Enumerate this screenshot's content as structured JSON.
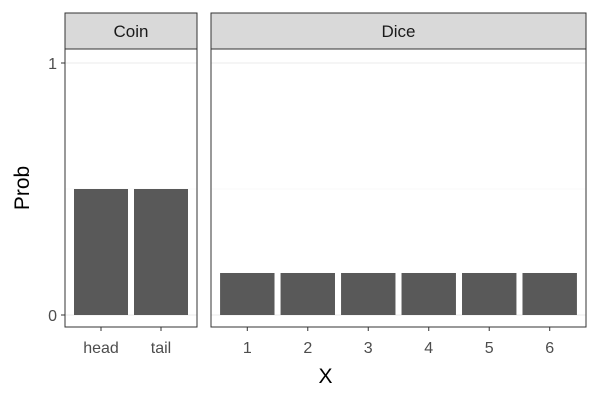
{
  "chart_data": {
    "type": "bar",
    "xlabel": "X",
    "ylabel": "Prob",
    "ylim": [
      0,
      1
    ],
    "yticks": [
      0,
      1
    ],
    "grid": true,
    "bar_color": "#595959",
    "facets": [
      {
        "name": "Coin",
        "categories": [
          "head",
          "tail"
        ],
        "values": [
          0.5,
          0.5
        ]
      },
      {
        "name": "Dice",
        "categories": [
          "1",
          "2",
          "3",
          "4",
          "5",
          "6"
        ],
        "values": [
          0.1667,
          0.1667,
          0.1667,
          0.1667,
          0.1667,
          0.1667
        ]
      }
    ]
  }
}
